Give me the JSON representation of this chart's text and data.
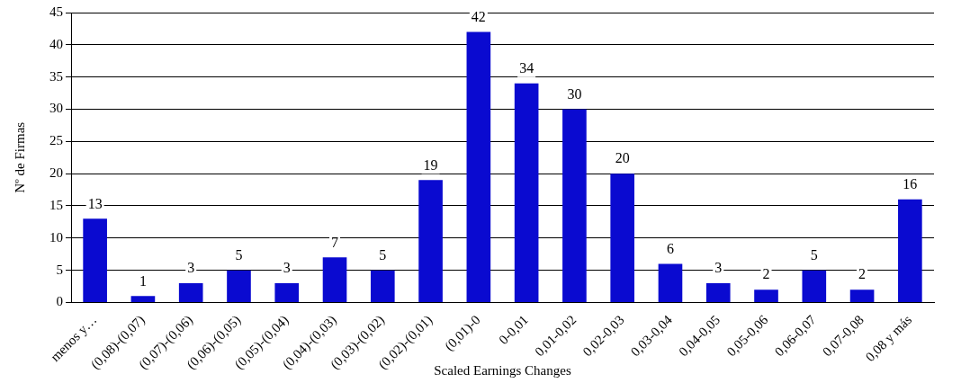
{
  "chart_data": {
    "type": "bar",
    "xlabel": "Scaled Earnings Changes",
    "ylabel": "Nº de Firmas",
    "categories": [
      "menos y…",
      "(0,08)-(0,07)",
      "(0,07)-(0,06)",
      "(0,06)-(0,05)",
      "(0,05)-(0,04)",
      "(0,04)-(0,03)",
      "(0,03)-(0,02)",
      "(0,02)-(0,01)",
      "(0,01)-0",
      "0-0,01",
      "0,01-0,02",
      "0,02-0,03",
      "0,03-0,04",
      "0,04-0,05",
      "0,05-0,06",
      "0,06-0,07",
      "0,07-0,08",
      "0,08 y más"
    ],
    "values": [
      13,
      1,
      3,
      5,
      3,
      7,
      5,
      19,
      42,
      34,
      30,
      20,
      6,
      3,
      2,
      5,
      2,
      16
    ],
    "color": "#0a0ad0",
    "ylim": [
      0,
      45
    ],
    "yticks": [
      0,
      5,
      10,
      15,
      20,
      25,
      30,
      35,
      40,
      45
    ],
    "grid": "y",
    "data_labels": true
  }
}
